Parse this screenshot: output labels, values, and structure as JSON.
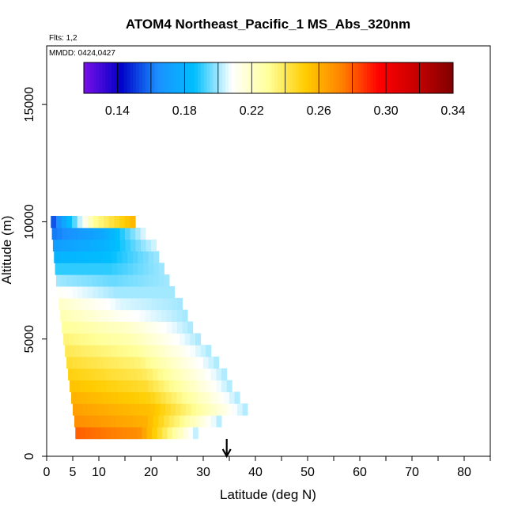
{
  "chart_data": {
    "type": "heatmap",
    "title": "ATOM4 Northeast_Pacific_1 MS_Abs_320nm",
    "flights_label": "Flts: 1,2",
    "mmdd_label": "MMDD: 0424,0427",
    "xlabel": "Latitude (deg N)",
    "ylabel": "Altitude (m)",
    "xlim": [
      0,
      85
    ],
    "ylim": [
      0,
      17500
    ],
    "x_ticks": [
      0,
      5,
      10,
      20,
      30,
      40,
      50,
      60,
      70,
      80
    ],
    "x_minor_ticks": [
      15,
      25,
      35,
      45,
      55,
      65,
      75,
      85
    ],
    "y_ticks": [
      0,
      5000,
      10000,
      15000
    ],
    "colorbar": {
      "min": 0.12,
      "max": 0.34,
      "ticks": [
        "0.14",
        "0.18",
        "0.22",
        "0.26",
        "0.30",
        "0.34"
      ],
      "colors": [
        "#7a10e8",
        "#0000c8",
        "#1a90ff",
        "#00bfff",
        "#ffffff",
        "#ffff99",
        "#ffcc00",
        "#ff8000",
        "#ff0000",
        "#c80000",
        "#800000"
      ]
    },
    "arrow_latitude": 34.5,
    "vertical_profile": {
      "altitude_bins_m": [
        1000,
        1500,
        2000,
        2500,
        3000,
        3500,
        4000,
        4500,
        5000,
        5500,
        6000,
        6500,
        7000,
        7500,
        8000,
        8500,
        9000,
        9500,
        10000
      ],
      "lat_start": [
        5.5,
        5.3,
        5.0,
        4.7,
        4.4,
        4.1,
        3.8,
        3.5,
        3.2,
        2.9,
        2.6,
        2.3,
        2.0,
        1.8,
        1.6,
        1.4,
        1.2,
        1.0,
        0.8
      ],
      "lat_end": [
        29.0,
        33.5,
        38.5,
        37.0,
        35.5,
        34.5,
        33.0,
        31.5,
        29.5,
        28.0,
        27.0,
        26.0,
        24.5,
        23.5,
        22.5,
        21.5,
        21.0,
        20.0,
        17.0
      ],
      "lat_min": [
        11.5,
        11.0,
        10.5,
        10.3,
        10.0,
        9.7,
        9.4,
        9.1,
        8.8,
        8.5,
        8.2,
        7.9,
        7.5,
        7.2,
        6.8,
        6.5,
        6.1,
        5.7,
        5.0
      ],
      "low_altitude_values": [
        0.28,
        0.27,
        0.265,
        0.26,
        0.255,
        0.25,
        0.245,
        0.24,
        0.235,
        0.23,
        0.225,
        0.22,
        0.21,
        0.2,
        0.19,
        0.18,
        0.17,
        0.16,
        0.15
      ],
      "peak_values": [
        0.27,
        0.26,
        0.255,
        0.25,
        0.245,
        0.24,
        0.235,
        0.23,
        0.225,
        0.22,
        0.21,
        0.205,
        0.2,
        0.195,
        0.19,
        0.185,
        0.18,
        0.175,
        0.23
      ],
      "high_lat_values": [
        0.2,
        0.2,
        0.2,
        0.2,
        0.2,
        0.2,
        0.2,
        0.2,
        0.2,
        0.2,
        0.2,
        0.2,
        0.2,
        0.2,
        0.2,
        0.2,
        0.205,
        0.21,
        0.26
      ]
    }
  }
}
